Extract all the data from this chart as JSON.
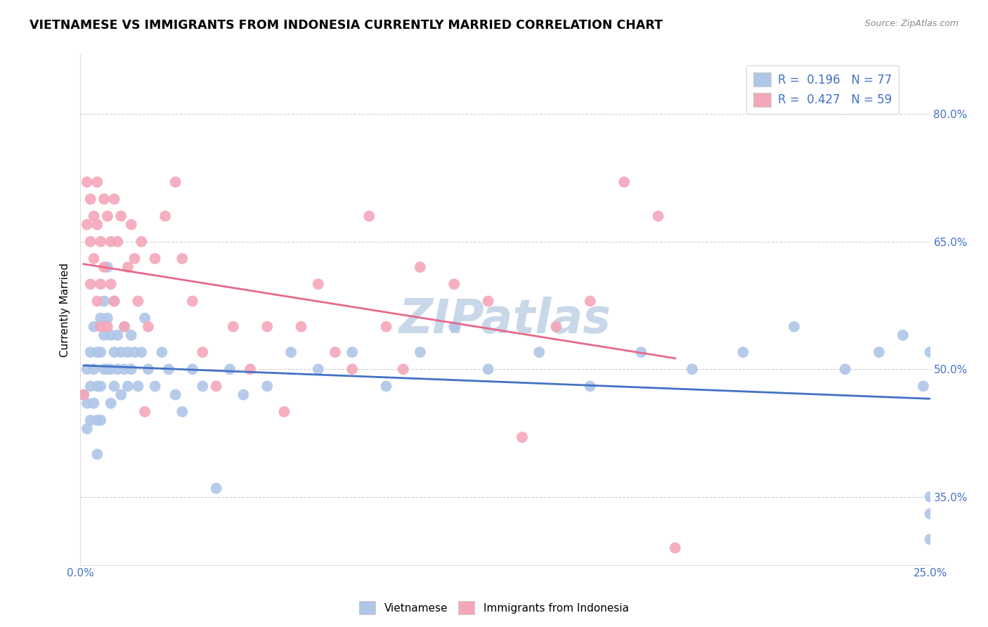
{
  "title": "VIETNAMESE VS IMMIGRANTS FROM INDONESIA CURRENTLY MARRIED CORRELATION CHART",
  "source_text": "Source: ZipAtlas.com",
  "ylabel": "Currently Married",
  "xlim": [
    0.0,
    0.25
  ],
  "ylim": [
    0.27,
    0.87
  ],
  "yticks": [
    0.35,
    0.5,
    0.65,
    0.8
  ],
  "ytick_labels": [
    "35.0%",
    "50.0%",
    "65.0%",
    "80.0%"
  ],
  "xtick_positions": [
    0.0,
    0.025,
    0.05,
    0.075,
    0.1,
    0.125,
    0.15,
    0.175,
    0.2,
    0.225,
    0.25
  ],
  "xtick_labels": [
    "0.0%",
    "",
    "",
    "",
    "",
    "",
    "",
    "",
    "",
    "",
    "25.0%"
  ],
  "viet_R": 0.196,
  "viet_N": 77,
  "indo_R": 0.427,
  "indo_N": 59,
  "viet_color": "#aec6e8",
  "indo_color": "#f4a7b9",
  "viet_line_color": "#4472c4",
  "indo_line_color": "#e8698a",
  "background_color": "#ffffff",
  "grid_color": "#cccccc",
  "watermark_text": "ZIPatlas",
  "watermark_color": "#c8d8e8",
  "viet_x": [
    0.001,
    0.002,
    0.002,
    0.002,
    0.003,
    0.003,
    0.003,
    0.004,
    0.004,
    0.004,
    0.005,
    0.005,
    0.005,
    0.005,
    0.006,
    0.006,
    0.006,
    0.006,
    0.007,
    0.007,
    0.007,
    0.008,
    0.008,
    0.008,
    0.009,
    0.009,
    0.009,
    0.01,
    0.01,
    0.01,
    0.011,
    0.011,
    0.012,
    0.012,
    0.013,
    0.013,
    0.014,
    0.014,
    0.015,
    0.015,
    0.016,
    0.017,
    0.018,
    0.019,
    0.02,
    0.022,
    0.024,
    0.026,
    0.028,
    0.03,
    0.033,
    0.036,
    0.04,
    0.044,
    0.048,
    0.055,
    0.062,
    0.07,
    0.08,
    0.09,
    0.1,
    0.11,
    0.12,
    0.135,
    0.15,
    0.165,
    0.18,
    0.195,
    0.21,
    0.225,
    0.235,
    0.242,
    0.248,
    0.25,
    0.25,
    0.25,
    0.25
  ],
  "viet_y": [
    0.47,
    0.5,
    0.46,
    0.43,
    0.52,
    0.48,
    0.44,
    0.55,
    0.5,
    0.46,
    0.52,
    0.48,
    0.44,
    0.4,
    0.56,
    0.52,
    0.48,
    0.44,
    0.58,
    0.54,
    0.5,
    0.62,
    0.56,
    0.5,
    0.54,
    0.5,
    0.46,
    0.58,
    0.52,
    0.48,
    0.54,
    0.5,
    0.52,
    0.47,
    0.55,
    0.5,
    0.52,
    0.48,
    0.54,
    0.5,
    0.52,
    0.48,
    0.52,
    0.56,
    0.5,
    0.48,
    0.52,
    0.5,
    0.47,
    0.45,
    0.5,
    0.48,
    0.36,
    0.5,
    0.47,
    0.48,
    0.52,
    0.5,
    0.52,
    0.48,
    0.52,
    0.55,
    0.5,
    0.52,
    0.48,
    0.52,
    0.5,
    0.52,
    0.55,
    0.5,
    0.52,
    0.54,
    0.48,
    0.35,
    0.33,
    0.52,
    0.3
  ],
  "indo_x": [
    0.001,
    0.002,
    0.002,
    0.003,
    0.003,
    0.003,
    0.004,
    0.004,
    0.005,
    0.005,
    0.005,
    0.006,
    0.006,
    0.006,
    0.007,
    0.007,
    0.008,
    0.008,
    0.009,
    0.009,
    0.01,
    0.01,
    0.011,
    0.012,
    0.013,
    0.014,
    0.015,
    0.016,
    0.017,
    0.018,
    0.019,
    0.02,
    0.022,
    0.025,
    0.028,
    0.03,
    0.033,
    0.036,
    0.04,
    0.045,
    0.05,
    0.055,
    0.06,
    0.065,
    0.07,
    0.075,
    0.08,
    0.085,
    0.09,
    0.095,
    0.1,
    0.11,
    0.12,
    0.13,
    0.14,
    0.15,
    0.16,
    0.17,
    0.175
  ],
  "indo_y": [
    0.47,
    0.72,
    0.67,
    0.7,
    0.65,
    0.6,
    0.68,
    0.63,
    0.72,
    0.67,
    0.58,
    0.65,
    0.6,
    0.55,
    0.7,
    0.62,
    0.68,
    0.55,
    0.65,
    0.6,
    0.7,
    0.58,
    0.65,
    0.68,
    0.55,
    0.62,
    0.67,
    0.63,
    0.58,
    0.65,
    0.45,
    0.55,
    0.63,
    0.68,
    0.72,
    0.63,
    0.58,
    0.52,
    0.48,
    0.55,
    0.5,
    0.55,
    0.45,
    0.55,
    0.6,
    0.52,
    0.5,
    0.68,
    0.55,
    0.5,
    0.62,
    0.6,
    0.58,
    0.42,
    0.55,
    0.58,
    0.72,
    0.68,
    0.29
  ]
}
